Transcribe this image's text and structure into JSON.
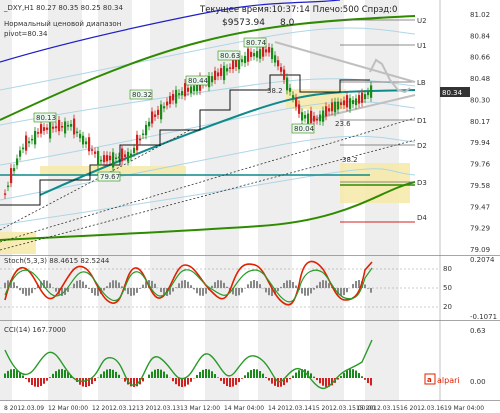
{
  "header": {
    "symbol_line": "_DXY,H1  80.27 80.35 80.25 80.34",
    "time_label": "Текущее время:10:37:14 Плечо:500 Спрэд:0",
    "balance_label": "$9573.94",
    "balance_extra": "8.0",
    "range_label": "Нормальный ценовой диапазон",
    "pivot_label": "pivot=80.34"
  },
  "levels": {
    "U2": "U2",
    "U1": "U1",
    "LB": "LB",
    "D1": "D1",
    "D2": "D2",
    "D3": "D3",
    "D4": "D4"
  },
  "chart_annotations": {
    "p1": "80.13",
    "p2": "79.67",
    "p3": "80.32",
    "p4": "80.44",
    "p5": "80.63",
    "p6": "80.74",
    "p7": "38.2",
    "p8": "80.04",
    "p9": "23.6",
    "p10": "38.2"
  },
  "price_axis": {
    "ticks": [
      "81.02",
      "80.84",
      "80.66",
      "80.48",
      "80.30",
      "80.17",
      "79.94",
      "79.76",
      "79.58",
      "79.47",
      "79.29",
      "79.09"
    ],
    "current": "80.34"
  },
  "stoch_panel": {
    "title": "Stoch(5,3,3) 88.4615 82.5244",
    "ticks": [
      "80",
      "50",
      "20"
    ],
    "right_ticks": [
      "0.2074",
      "-0.1071"
    ]
  },
  "cci_panel": {
    "title": "CCI(14) 167.7000",
    "right_ticks": [
      "0.63",
      "0.00"
    ],
    "brand": "alpari"
  },
  "time_axis": {
    "labels": [
      "8 2012.03.09",
      "12 Mar 00:00",
      "12 2012.03.12",
      "13 2012.03.13",
      "13 Mar 12:00",
      "14 Mar 04:00",
      "14 2012.03.14",
      "15 2012.03.15 00:00",
      "15 2012.03.15",
      "16 2012.03.16",
      "19 Mar 04:00"
    ]
  },
  "colors": {
    "bull_candle": "#1a8a1a",
    "bear_candle": "#d02020",
    "envelope": "#aed6e6",
    "ma_green": "#2e8b00",
    "ma_teal": "#0e8a8a",
    "ma_blue": "#2020c8",
    "zone": "#f7e9a8",
    "stoch_red": "#e02000",
    "stoch_green": "#2a9a2a"
  }
}
